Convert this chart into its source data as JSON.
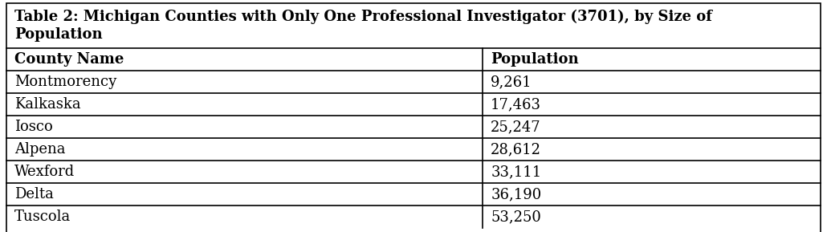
{
  "title_line1": "Table 2: Michigan Counties with Only One Professional Investigator (3701), by Size of",
  "title_line2": "Population",
  "col_headers": [
    "County Name",
    "Population"
  ],
  "rows": [
    [
      "Montmorency",
      "9,261"
    ],
    [
      "Kalkaska",
      "17,463"
    ],
    [
      "Iosco",
      "25,247"
    ],
    [
      "Alpena",
      "28,612"
    ],
    [
      "Wexford",
      "33,111"
    ],
    [
      "Delta",
      "36,190"
    ],
    [
      "Tuscola",
      "53,250"
    ]
  ],
  "col_split": 0.585,
  "bg_color": "#ffffff",
  "border_color": "#000000",
  "font_size": 13.0,
  "title_font_size": 13.0,
  "fig_width": 10.3,
  "fig_height": 2.89,
  "dpi": 100
}
